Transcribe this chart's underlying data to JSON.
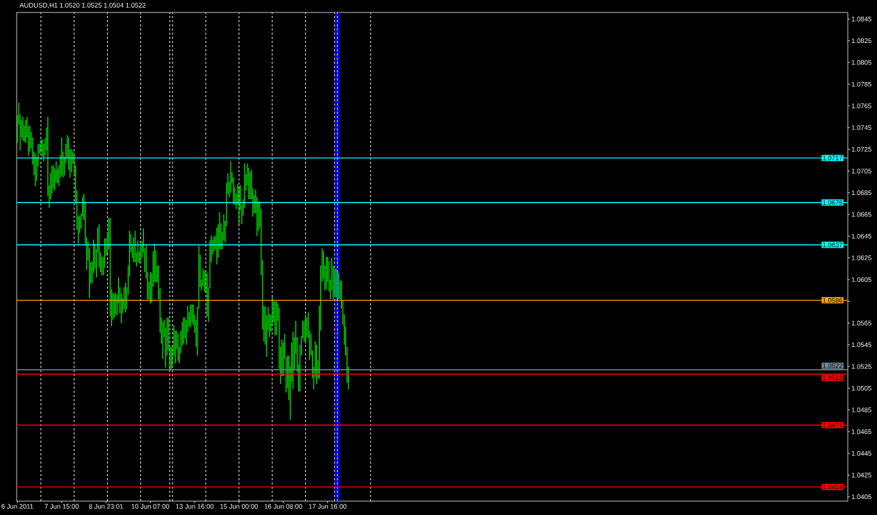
{
  "chart_data": {
    "type": "bar",
    "title": "AUDUSD,H1 1.0520 1.0525 1.0504 1.0522",
    "color": "#00ff00",
    "categories": [
      "6 Jun 2011",
      null,
      null,
      null,
      null,
      null,
      null,
      null,
      null,
      null,
      null,
      null,
      null,
      null,
      null,
      null,
      null,
      null,
      null,
      null,
      null,
      null,
      null,
      null,
      null,
      null,
      null,
      null,
      null,
      null,
      null,
      null,
      "7 Jun 15:00",
      null,
      null,
      null,
      null,
      null,
      null,
      null,
      null,
      null,
      null,
      null,
      null,
      null,
      null,
      null,
      null,
      null,
      null,
      null,
      null,
      null,
      null,
      null,
      null,
      null,
      null,
      null,
      null,
      null,
      null,
      null,
      "8 Jun 23:01",
      null,
      null,
      null,
      null,
      null,
      null,
      null,
      null,
      null,
      null,
      null,
      null,
      null,
      null,
      null,
      null,
      null,
      null,
      null,
      null,
      null,
      null,
      null,
      null,
      null,
      null,
      null,
      null,
      null,
      null,
      null,
      "10 Jun 07:00",
      null,
      null,
      null,
      null,
      null,
      null,
      null,
      null,
      null,
      null,
      null,
      null,
      null,
      null,
      null,
      null,
      null,
      null,
      null,
      null,
      null,
      null,
      null,
      null,
      null,
      null,
      null,
      null,
      null,
      null,
      null,
      "13 Jun 16:00",
      null,
      null,
      null,
      null,
      null,
      null,
      null,
      null,
      null,
      null,
      null,
      null,
      null,
      null,
      null,
      null,
      null,
      null,
      null,
      null,
      null,
      null,
      null,
      null,
      null,
      null,
      null,
      null,
      null,
      null,
      null,
      "15 Jun 00:00",
      null,
      null,
      null,
      null,
      null,
      null,
      null,
      null,
      null,
      null,
      null,
      null,
      null,
      null,
      null,
      null,
      null,
      null,
      null,
      null,
      null,
      null,
      null,
      null,
      null,
      null,
      null,
      null,
      null,
      null,
      null,
      "16 Jun 08:00",
      null,
      null,
      null,
      null,
      null,
      null,
      null,
      null,
      null,
      null,
      null,
      null,
      null,
      null,
      null,
      null,
      null,
      null,
      null,
      null,
      null,
      null,
      null,
      null,
      null,
      null,
      null,
      null,
      null,
      null,
      null,
      "17 Jun 16:00",
      null,
      null,
      null,
      null,
      null,
      null,
      null,
      null,
      null,
      null,
      null,
      null,
      null,
      null,
      null,
      null,
      null,
      null,
      null,
      null,
      null,
      null,
      null,
      null,
      null,
      null,
      null,
      null,
      null,
      null,
      null,
      null,
      null,
      null,
      null,
      null,
      null,
      null,
      null,
      null,
      null,
      null,
      null,
      null,
      null,
      null,
      null,
      null,
      null,
      null,
      null,
      null,
      null,
      null,
      null,
      null,
      null,
      null,
      null,
      null,
      null,
      null,
      null,
      null,
      null,
      null,
      null,
      null,
      null,
      null,
      null,
      null,
      null,
      null,
      null,
      null,
      null,
      null,
      null,
      null,
      null,
      null,
      null,
      null,
      null,
      null,
      null,
      null,
      null,
      null,
      null,
      null,
      null,
      null,
      null,
      null,
      null,
      null,
      null,
      null,
      null,
      null,
      null,
      null,
      null,
      null,
      null,
      null,
      null,
      null,
      null,
      null,
      null,
      null,
      null,
      null,
      null,
      null,
      null,
      null,
      null,
      null,
      null,
      null,
      null,
      null,
      null,
      null,
      null,
      null,
      null,
      null,
      null,
      null,
      null,
      null,
      null,
      null,
      null,
      null,
      null,
      null,
      null,
      null,
      null,
      null,
      null,
      null,
      null,
      null,
      null,
      null,
      null,
      null,
      null,
      null,
      null,
      null,
      null,
      null,
      null,
      null,
      null,
      null,
      null,
      null,
      null,
      null,
      null,
      null,
      null,
      null,
      null,
      null,
      null,
      null,
      null,
      null,
      null,
      null,
      null,
      null,
      null,
      null,
      null,
      null,
      null,
      null,
      null,
      null,
      null,
      null,
      null,
      null,
      null,
      null,
      null,
      null,
      null,
      null,
      null,
      null,
      null,
      null,
      null,
      null,
      null,
      null,
      null,
      null,
      null,
      null,
      null,
      null,
      null,
      null,
      null,
      null,
      null,
      null,
      null,
      null,
      null,
      null,
      null,
      null,
      null,
      null,
      null,
      null,
      null,
      null,
      null,
      null,
      null,
      null,
      null,
      null,
      null,
      null,
      null,
      null,
      null,
      null,
      null,
      null,
      null,
      null,
      null,
      null,
      null,
      null,
      null,
      null,
      null,
      null,
      null,
      null,
      null,
      null,
      null,
      null,
      null,
      null,
      null,
      null,
      null,
      null,
      null,
      null,
      null,
      null,
      null,
      null,
      null,
      null,
      null,
      null,
      null,
      null,
      null,
      null,
      null,
      null,
      null,
      null,
      null,
      null,
      null,
      null,
      null,
      null,
      null,
      null,
      null,
      null,
      null,
      null,
      null,
      null,
      null,
      null,
      null,
      null,
      null,
      null,
      null,
      null,
      null,
      null,
      null,
      null,
      null,
      null,
      null,
      null,
      null,
      null,
      null,
      null,
      null,
      null,
      null,
      null,
      null,
      null,
      null,
      null,
      null,
      null,
      null,
      null,
      null,
      null,
      null,
      null,
      null,
      null,
      null,
      null,
      null,
      null,
      null,
      null,
      null,
      null,
      null,
      null,
      null,
      null,
      null,
      null,
      null,
      null,
      null,
      null,
      null,
      null,
      null,
      null,
      null,
      null,
      null,
      null,
      null,
      null,
      null,
      null,
      null,
      null,
      null,
      null,
      null,
      null,
      null
    ],
    "base": [
      1.0731,
      1.0748,
      1.0724,
      1.0736,
      1.0733,
      1.0732,
      1.0731,
      1.0736,
      1.0719,
      1.0723,
      1.0726,
      1.0711,
      1.0701,
      1.0691,
      1.0696,
      1.0709,
      1.0721,
      1.0722,
      1.0718,
      1.0714,
      1.0719,
      1.0724,
      1.0682,
      1.0671,
      1.0679,
      1.0684,
      1.0689,
      1.0687,
      1.0694,
      1.0694,
      1.0691,
      1.0699,
      1.0701,
      1.0699,
      1.0701,
      1.0712,
      1.0717,
      1.0706,
      1.0699,
      1.0704,
      1.0712,
      1.0701,
      1.0675,
      1.0651,
      1.0638,
      1.0648,
      1.0652,
      1.0663,
      1.066,
      1.0637,
      1.0614,
      1.0623,
      1.0588,
      1.0601,
      1.0602,
      1.0611,
      1.0615,
      1.0607,
      1.063,
      1.0616,
      1.0612,
      1.0609,
      1.0609,
      1.0616,
      1.0627,
      1.0629,
      1.0633,
      1.0571,
      1.0562,
      1.0568,
      1.057,
      1.0573,
      1.0572,
      1.0583,
      1.0574,
      1.0565,
      1.0574,
      1.0578,
      1.0575,
      1.0578,
      1.0591,
      1.0608,
      1.063,
      1.0625,
      1.0621,
      1.0621,
      1.0617,
      1.0621,
      1.062,
      1.062,
      1.0625,
      1.063,
      1.0612,
      1.0606,
      1.0587,
      1.0587,
      1.0583,
      1.0584,
      1.0598,
      1.0603,
      1.0602,
      1.0603,
      1.0587,
      1.0556,
      1.0546,
      1.0532,
      1.0552,
      1.0524,
      1.0535,
      1.054,
      1.0522,
      1.0522,
      1.0526,
      1.0535,
      1.0528,
      1.0541,
      1.053,
      1.0528,
      1.0537,
      1.0544,
      1.0546,
      1.0551,
      1.0545,
      1.0557,
      1.0562,
      1.0561,
      1.0565,
      1.0563,
      1.0556,
      1.0543,
      1.0535,
      1.0578,
      1.0598,
      1.0595,
      1.0599,
      1.0594,
      1.0593,
      1.0571,
      1.0566,
      1.0597,
      1.0621,
      1.0628,
      1.0631,
      1.0633,
      1.0619,
      1.0625,
      1.0633,
      1.0633,
      1.0633,
      1.0641,
      1.0639,
      1.0654,
      1.0684,
      1.0681,
      1.0685,
      1.0694,
      1.0674,
      1.0674,
      1.067,
      1.0674,
      1.0656,
      1.0669,
      1.0656,
      1.0664,
      1.0671,
      1.0687,
      1.0692,
      1.0679,
      1.0679,
      1.0679,
      1.0663,
      1.0666,
      1.0666,
      1.0645,
      1.065,
      1.0653,
      1.0609,
      1.0559,
      1.0548,
      1.0545,
      1.0534,
      1.0558,
      1.0552,
      1.0557,
      1.0564,
      1.0566,
      1.0554,
      1.0554,
      1.0567,
      1.0523,
      1.0509,
      1.0516,
      1.0516,
      1.0532,
      1.0501,
      1.0505,
      1.0494,
      1.0476,
      1.0511,
      1.0504,
      1.0522,
      1.0537,
      1.052,
      1.0502,
      1.0502,
      1.0535,
      1.0551,
      1.0548,
      1.0546,
      1.0552,
      1.0551,
      1.0531,
      1.0535,
      1.0514,
      1.0504,
      1.0515,
      1.0509,
      1.0513,
      1.0514,
      1.0558,
      1.0603,
      1.0606,
      1.0595,
      1.0596,
      1.0603,
      1.0594,
      1.0587,
      1.0595,
      1.0587,
      1.0589,
      1.0589,
      1.0587,
      1.0587,
      1.0587,
      1.0578,
      1.0563,
      1.0545,
      1.0535,
      1.051,
      1.0504,
      null,
      null,
      null,
      null,
      null,
      null,
      null,
      null,
      null,
      null,
      null,
      null,
      null,
      null,
      null,
      null,
      null,
      null,
      null,
      null,
      null,
      null,
      null,
      null,
      null,
      null,
      null,
      null,
      null,
      null,
      null,
      null,
      null,
      null,
      null,
      null,
      null,
      null,
      null,
      null,
      null,
      null,
      null,
      null,
      null,
      null,
      null,
      null,
      null,
      null,
      null,
      null,
      null,
      null,
      null,
      null,
      null,
      null,
      null,
      null,
      null,
      null,
      null,
      null,
      null,
      null,
      null,
      null,
      null,
      null,
      null,
      null,
      null,
      null,
      null,
      null,
      null,
      null,
      null,
      null,
      null,
      null,
      null,
      null,
      null,
      null,
      null,
      null,
      null,
      null,
      null,
      null,
      null,
      null,
      null,
      null,
      null,
      null,
      null,
      null,
      null,
      null,
      null,
      null,
      null,
      null,
      null,
      null,
      null,
      null,
      null,
      null,
      null,
      null,
      null,
      null,
      null,
      null,
      null,
      null,
      null,
      null,
      null,
      null,
      null,
      null,
      null,
      null,
      null,
      null,
      null,
      null,
      null,
      null,
      null,
      null,
      null,
      null,
      null,
      null,
      null,
      null,
      null,
      null,
      null,
      null,
      null,
      null,
      null,
      null,
      null,
      null,
      null,
      null,
      null,
      null,
      null,
      null,
      null,
      null,
      null,
      null,
      null,
      null,
      null,
      null,
      null,
      null,
      null,
      null,
      null,
      null,
      null,
      null,
      null,
      null,
      null,
      null,
      null,
      null,
      null,
      null,
      null,
      null,
      null,
      null,
      null,
      null,
      null,
      null,
      null,
      null,
      null,
      null,
      null,
      null,
      null,
      null,
      null,
      null,
      null,
      null,
      null,
      null,
      null,
      null,
      null,
      null,
      null,
      null,
      null,
      null,
      null,
      null,
      null,
      null,
      null,
      null,
      null,
      null,
      null,
      null,
      null,
      null,
      null,
      null,
      null,
      null,
      null,
      null,
      null,
      null,
      null,
      null,
      null,
      null,
      null,
      null,
      null,
      null,
      null,
      null,
      null,
      null,
      null,
      null,
      null,
      null,
      null,
      null,
      null,
      null,
      null,
      null,
      null,
      null,
      null,
      null,
      null,
      null,
      null,
      null,
      null,
      null,
      null,
      null,
      null,
      null,
      null,
      null,
      null,
      null,
      null,
      null,
      null,
      null,
      null,
      null,
      null,
      null,
      null,
      null,
      null,
      null,
      null,
      null,
      null,
      null,
      null,
      null,
      null,
      null,
      null,
      null,
      null,
      null,
      null,
      null,
      null,
      null,
      null,
      null,
      null,
      null,
      null,
      null,
      null,
      null,
      null,
      null,
      null,
      null,
      null,
      null,
      null,
      null,
      null,
      null,
      null,
      null,
      null,
      null,
      null,
      null,
      null,
      null,
      null,
      null,
      null,
      null,
      null,
      null,
      null,
      null,
      null,
      null,
      null,
      null,
      null,
      null,
      null,
      null,
      null,
      null,
      null,
      null,
      null,
      null,
      null,
      null,
      null,
      null,
      null,
      null,
      null,
      null,
      null,
      null,
      null,
      null
    ],
    "values": [
      0.0025,
      0.002,
      0.0033,
      0.0016,
      0.0022,
      0.0015,
      0.0021,
      0.0019,
      0.0027,
      0.0024,
      0.0015,
      0.0025,
      0.0022,
      0.003,
      0.0022,
      0.0021,
      0.0009,
      0.0012,
      0.0016,
      0.0016,
      0.0016,
      0.0021,
      0.0073,
      0.0021,
      0.0024,
      0.0026,
      0.0021,
      0.002,
      0.002,
      0.0013,
      0.0019,
      0.0021,
      0.0035,
      0.0024,
      0.0017,
      0.0018,
      0.0021,
      0.003,
      0.0026,
      0.0021,
      0.0011,
      0.002,
      0.0035,
      0.0036,
      0.0026,
      0.0015,
      0.0014,
      0.0018,
      0.0024,
      0.004,
      0.003,
      0.0017,
      0.0046,
      0.002,
      0.002,
      0.0031,
      0.0023,
      0.0026,
      0.0023,
      0.004,
      0.0018,
      0.0017,
      0.0017,
      0.0027,
      0.0016,
      0.002,
      0.0029,
      0.0091,
      0.0034,
      0.0025,
      0.0022,
      0.002,
      0.0019,
      0.0024,
      0.0024,
      0.0028,
      0.0014,
      0.002,
      0.0027,
      0.002,
      0.0027,
      0.0042,
      0.0017,
      0.0012,
      0.0023,
      0.0029,
      0.0013,
      0.002,
      0.0011,
      0.0018,
      0.0015,
      0.0022,
      0.0022,
      0.003,
      0.0025,
      0.0016,
      0.0029,
      0.0027,
      0.0033,
      0.0035,
      0.003,
      0.0015,
      0.0031,
      0.0041,
      0.0024,
      0.0034,
      0.0016,
      0.0036,
      0.0035,
      0.003,
      0.0021,
      0.0021,
      0.0017,
      0.0028,
      0.003,
      0.0017,
      0.0025,
      0.0015,
      0.0021,
      0.0022,
      0.0024,
      0.0019,
      0.0023,
      0.0024,
      0.0013,
      0.0021,
      0.0017,
      0.0019,
      0.0017,
      0.0025,
      0.0045,
      0.0058,
      0.003,
      0.001,
      0.0016,
      0.0019,
      0.0019,
      0.004,
      0.0032,
      0.0044,
      0.0025,
      0.0014,
      0.0014,
      0.0012,
      0.0034,
      0.0031,
      0.0034,
      0.0024,
      0.0016,
      0.0024,
      0.002,
      0.004,
      0.0019,
      0.0014,
      0.0029,
      0.001,
      0.0025,
      0.0016,
      0.0014,
      0.0019,
      0.0035,
      0.0023,
      0.0018,
      0.0015,
      0.0041,
      0.0015,
      0.002,
      0.0029,
      0.0025,
      0.0027,
      0.0026,
      0.0017,
      0.0022,
      0.0036,
      0.0027,
      0.0024,
      0.0061,
      0.0064,
      0.0033,
      0.0035,
      0.0038,
      0.0022,
      0.0021,
      0.0016,
      0.0025,
      0.0019,
      0.0031,
      0.0031,
      0.0016,
      0.0056,
      0.0034,
      0.0034,
      0.0031,
      0.0023,
      0.0032,
      0.003,
      0.0041,
      0.0049,
      0.0036,
      0.0053,
      0.003,
      0.003,
      0.0032,
      0.0025,
      0.0043,
      0.0018,
      0.0016,
      0.0019,
      0.0027,
      0.0018,
      0.0024,
      0.0027,
      0.002,
      0.0026,
      0.0021,
      0.0033,
      0.0036,
      0.0018,
      0.0067,
      0.006,
      0.0031,
      0.0025,
      0.0023,
      0.003,
      0.0023,
      0.0028,
      0.0018,
      0.003,
      0.0031,
      0.0026,
      0.0026,
      0.0025,
      0.0024,
      0.0017,
      0.0026,
      0.0023,
      0.0028,
      0.0027,
      0.0033,
      0.0021,
      null,
      null,
      null,
      null,
      null,
      null,
      null,
      null,
      null,
      null,
      null,
      null,
      null,
      null,
      null,
      null,
      null,
      null,
      null,
      null,
      null,
      null,
      null,
      null,
      null,
      null,
      null,
      null,
      null,
      null,
      null,
      null,
      null,
      null,
      null,
      null,
      null,
      null,
      null,
      null,
      null,
      null,
      null,
      null,
      null,
      null,
      null,
      null,
      null,
      null,
      null,
      null,
      null,
      null,
      null,
      null,
      null,
      null,
      null,
      null,
      null,
      null,
      null,
      null,
      null,
      null,
      null,
      null,
      null,
      null,
      null,
      null,
      null,
      null,
      null,
      null,
      null,
      null,
      null,
      null,
      null,
      null,
      null,
      null,
      null,
      null,
      null,
      null,
      null,
      null,
      null,
      null,
      null,
      null,
      null,
      null,
      null,
      null,
      null,
      null,
      null,
      null,
      null,
      null,
      null,
      null,
      null,
      null,
      null,
      null,
      null,
      null,
      null,
      null,
      null,
      null,
      null,
      null,
      null,
      null,
      null,
      null,
      null,
      null,
      null,
      null,
      null,
      null,
      null,
      null,
      null,
      null,
      null,
      null,
      null,
      null,
      null,
      null,
      null,
      null,
      null,
      null,
      null,
      null,
      null,
      null,
      null,
      null,
      null,
      null,
      null,
      null,
      null,
      null,
      null,
      null,
      null,
      null,
      null,
      null,
      null,
      null,
      null,
      null,
      null,
      null,
      null,
      null,
      null,
      null,
      null,
      null,
      null,
      null,
      null,
      null,
      null,
      null,
      null,
      null,
      null,
      null,
      null,
      null,
      null,
      null,
      null,
      null,
      null,
      null,
      null,
      null,
      null,
      null,
      null,
      null,
      null,
      null,
      null,
      null,
      null,
      null,
      null,
      null,
      null,
      null,
      null,
      null,
      null,
      null,
      null,
      null,
      null,
      null,
      null,
      null,
      null,
      null,
      null,
      null,
      null,
      null,
      null,
      null,
      null,
      null,
      null,
      null,
      null,
      null,
      null,
      null,
      null,
      null,
      null,
      null,
      null,
      null,
      null,
      null,
      null,
      null,
      null,
      null,
      null,
      null,
      null,
      null,
      null,
      null,
      null,
      null,
      null,
      null,
      null,
      null,
      null,
      null,
      null,
      null,
      null,
      null,
      null,
      null,
      null,
      null,
      null,
      null,
      null,
      null,
      null,
      null,
      null,
      null,
      null,
      null,
      null,
      null,
      null,
      null,
      null,
      null,
      null,
      null,
      null,
      null,
      null,
      null,
      null,
      null,
      null,
      null,
      null,
      null,
      null,
      null,
      null,
      null,
      null,
      null,
      null,
      null,
      null,
      null,
      null,
      null,
      null,
      null,
      null,
      null,
      null,
      null,
      null,
      null,
      null,
      null,
      null,
      null,
      null,
      null,
      null,
      null,
      null,
      null,
      null,
      null,
      null,
      null,
      null,
      null,
      null,
      null,
      null,
      null,
      null,
      null,
      null,
      null,
      null,
      null,
      null,
      null,
      null,
      null,
      null,
      null,
      null,
      null,
      null,
      null,
      null,
      null,
      null,
      null,
      null,
      null,
      null,
      null,
      null,
      null
    ],
    "ylim": [
      1.0401,
      1.0851
    ],
    "yticks": [
      1.0405,
      1.0425,
      1.0445,
      1.0465,
      1.0485,
      1.0505,
      1.0525,
      1.0545,
      1.0565,
      {
        "value": 1.0585,
        "label": null
      },
      1.0605,
      1.0625,
      1.0645,
      1.0665,
      1.0685,
      1.0705,
      1.0725,
      1.0745,
      1.0765,
      1.0785,
      1.0805,
      1.0825,
      1.0845
    ],
    "ref_lines": [
      {
        "axis": "y",
        "value": 1.0717,
        "label": "1.0717",
        "color": "#00ffff"
      },
      {
        "axis": "y",
        "value": 1.0676,
        "label": "1.0676",
        "color": "#00ffff"
      },
      {
        "axis": "y",
        "value": 1.0637,
        "label": "1.0637",
        "color": "#00ffff"
      },
      {
        "axis": "y",
        "value": 1.0586,
        "label": "1.0586",
        "color": "#ffa500"
      },
      {
        "axis": "y",
        "value": 1.0522,
        "label": "1.0522",
        "color": "#778899"
      },
      {
        "axis": "y",
        "value": 1.0518,
        "label": "1.0518",
        "color": "#ff0000"
      },
      {
        "axis": "y",
        "value": 1.0471,
        "label": "1.0471",
        "color": "#ff0000"
      },
      {
        "axis": "y",
        "value": 1.0414,
        "label": "1.0414",
        "color": "#ff0000"
      }
    ]
  }
}
